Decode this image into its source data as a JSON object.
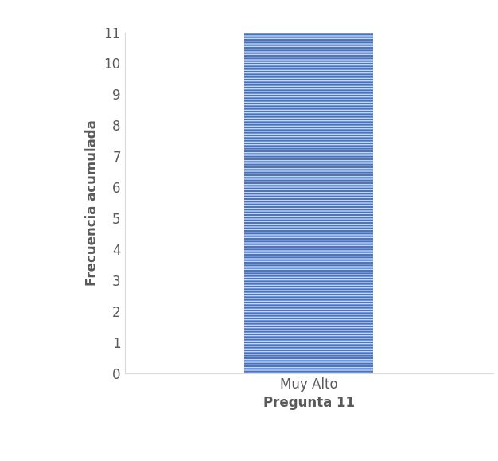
{
  "chart_data": {
    "type": "bar",
    "categories": [
      "Muy Alto"
    ],
    "values": [
      11
    ],
    "color": "#4472c4",
    "xlabel": "Pregunta 11",
    "ylabel": "Frecuencia acumulada",
    "ylim": [
      0,
      11
    ],
    "yticks": [
      0,
      1,
      2,
      3,
      4,
      5,
      6,
      7,
      8,
      9,
      10,
      11
    ],
    "grid": false
  }
}
